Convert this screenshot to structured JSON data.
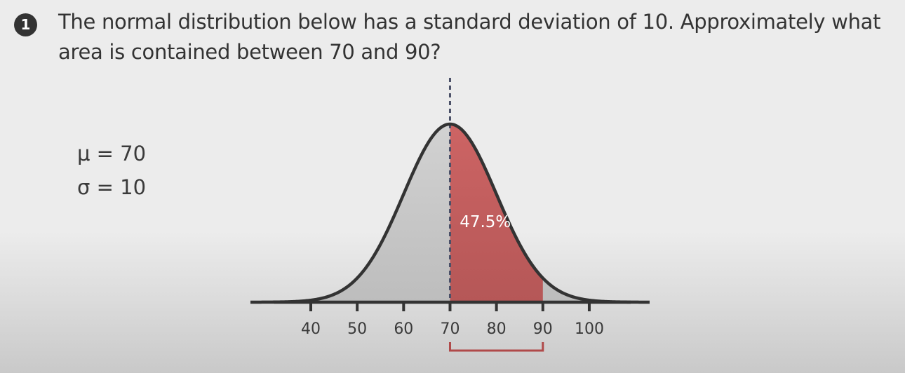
{
  "question": {
    "number": "1",
    "text": "The normal distribution below has a standard deviation of 10. Approximately what area is contained between 70 and 90?"
  },
  "params": {
    "mu_label": "μ = 70",
    "sigma_label": "σ = 10"
  },
  "chart_data": {
    "type": "area",
    "distribution": "normal",
    "mean": 70,
    "sd": 10,
    "xlim": [
      32,
      109
    ],
    "x_ticks": [
      40,
      50,
      60,
      70,
      80,
      90,
      100
    ],
    "tick_labels": [
      "40",
      "50",
      "60",
      "70",
      "80",
      "90",
      "100"
    ],
    "highlight_range": [
      70,
      90
    ],
    "highlight_label": "47.5%",
    "mean_line": "dashed",
    "colors": {
      "curve_fill": "#cdcdcd",
      "highlight_fill": "#c96262",
      "curve_stroke": "#333333",
      "mean_line": "#4a5068",
      "bracket": "#b04a4a"
    }
  }
}
